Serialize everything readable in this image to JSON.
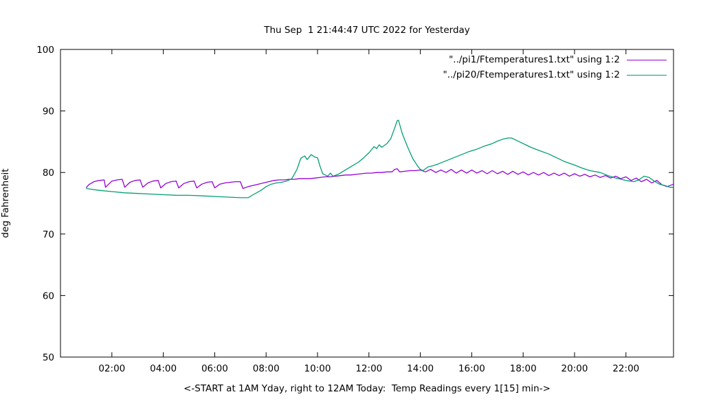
{
  "window": {
    "background": "#ffffff"
  },
  "chart_data": {
    "type": "line",
    "title": "Thu Sep  1 21:44:47 UTC 2022 for Yesterday",
    "ylabel": "deg Fahrenheit",
    "xlabel": "<-START at 1AM Yday, right to 12AM Today:  Temp Readings every 1[15] min->",
    "ylim": [
      50,
      100
    ],
    "xlim": [
      0,
      23.85
    ],
    "grid": false,
    "legend_position": "top-right-inside",
    "y_ticks": [
      50,
      60,
      70,
      80,
      90,
      100
    ],
    "x_ticks": [
      {
        "value": 2,
        "label": "02:00"
      },
      {
        "value": 4,
        "label": "04:00"
      },
      {
        "value": 6,
        "label": "06:00"
      },
      {
        "value": 8,
        "label": "08:00"
      },
      {
        "value": 10,
        "label": "10:00"
      },
      {
        "value": 12,
        "label": "12:00"
      },
      {
        "value": 14,
        "label": "14:00"
      },
      {
        "value": 16,
        "label": "16:00"
      },
      {
        "value": 18,
        "label": "18:00"
      },
      {
        "value": 20,
        "label": "20:00"
      },
      {
        "value": 22,
        "label": "22:00"
      }
    ],
    "series": [
      {
        "name": "\"../pi1/Ftemperatures1.txt\" using 1:2",
        "color": "#9400d3",
        "points": [
          [
            1.0,
            77.5
          ],
          [
            1.1,
            78.0
          ],
          [
            1.3,
            78.5
          ],
          [
            1.5,
            78.7
          ],
          [
            1.7,
            78.8
          ],
          [
            1.75,
            77.6
          ],
          [
            2.0,
            78.6
          ],
          [
            2.2,
            78.8
          ],
          [
            2.4,
            78.9
          ],
          [
            2.5,
            77.6
          ],
          [
            2.7,
            78.4
          ],
          [
            2.9,
            78.7
          ],
          [
            3.1,
            78.8
          ],
          [
            3.2,
            77.6
          ],
          [
            3.4,
            78.3
          ],
          [
            3.6,
            78.6
          ],
          [
            3.8,
            78.7
          ],
          [
            3.9,
            77.5
          ],
          [
            4.1,
            78.2
          ],
          [
            4.3,
            78.5
          ],
          [
            4.5,
            78.6
          ],
          [
            4.6,
            77.5
          ],
          [
            4.8,
            78.2
          ],
          [
            5.0,
            78.5
          ],
          [
            5.2,
            78.6
          ],
          [
            5.3,
            77.5
          ],
          [
            5.5,
            78.1
          ],
          [
            5.7,
            78.4
          ],
          [
            5.9,
            78.5
          ],
          [
            6.0,
            77.5
          ],
          [
            6.2,
            78.1
          ],
          [
            6.4,
            78.3
          ],
          [
            6.6,
            78.4
          ],
          [
            6.8,
            78.5
          ],
          [
            7.0,
            78.5
          ],
          [
            7.1,
            77.4
          ],
          [
            7.3,
            77.7
          ],
          [
            7.5,
            77.9
          ],
          [
            7.7,
            78.1
          ],
          [
            7.9,
            78.3
          ],
          [
            8.1,
            78.5
          ],
          [
            8.3,
            78.7
          ],
          [
            8.5,
            78.8
          ],
          [
            8.7,
            78.8
          ],
          [
            8.9,
            78.9
          ],
          [
            9.1,
            78.9
          ],
          [
            9.3,
            79.0
          ],
          [
            9.5,
            79.0
          ],
          [
            9.7,
            79.0
          ],
          [
            9.9,
            79.1
          ],
          [
            10.1,
            79.2
          ],
          [
            10.3,
            79.3
          ],
          [
            10.5,
            79.3
          ],
          [
            10.7,
            79.4
          ],
          [
            10.9,
            79.5
          ],
          [
            11.1,
            79.6
          ],
          [
            11.3,
            79.6
          ],
          [
            11.5,
            79.7
          ],
          [
            11.7,
            79.8
          ],
          [
            11.9,
            79.9
          ],
          [
            12.1,
            79.9
          ],
          [
            12.3,
            80.0
          ],
          [
            12.5,
            80.0
          ],
          [
            12.7,
            80.1
          ],
          [
            12.9,
            80.1
          ],
          [
            13.0,
            80.5
          ],
          [
            13.1,
            80.6
          ],
          [
            13.2,
            80.1
          ],
          [
            13.4,
            80.2
          ],
          [
            13.6,
            80.3
          ],
          [
            13.8,
            80.3
          ],
          [
            14.0,
            80.4
          ],
          [
            14.2,
            80.1
          ],
          [
            14.4,
            80.5
          ],
          [
            14.6,
            80.0
          ],
          [
            14.8,
            80.4
          ],
          [
            15.0,
            80.0
          ],
          [
            15.2,
            80.5
          ],
          [
            15.4,
            79.9
          ],
          [
            15.6,
            80.4
          ],
          [
            15.8,
            79.9
          ],
          [
            16.0,
            80.4
          ],
          [
            16.2,
            79.9
          ],
          [
            16.4,
            80.3
          ],
          [
            16.6,
            79.8
          ],
          [
            16.8,
            80.3
          ],
          [
            17.0,
            79.8
          ],
          [
            17.2,
            80.2
          ],
          [
            17.4,
            79.7
          ],
          [
            17.6,
            80.2
          ],
          [
            17.8,
            79.7
          ],
          [
            18.0,
            80.1
          ],
          [
            18.2,
            79.6
          ],
          [
            18.4,
            80.0
          ],
          [
            18.6,
            79.6
          ],
          [
            18.8,
            80.0
          ],
          [
            19.0,
            79.5
          ],
          [
            19.2,
            79.9
          ],
          [
            19.4,
            79.5
          ],
          [
            19.6,
            79.9
          ],
          [
            19.8,
            79.4
          ],
          [
            20.0,
            79.8
          ],
          [
            20.2,
            79.4
          ],
          [
            20.4,
            79.7
          ],
          [
            20.6,
            79.3
          ],
          [
            20.8,
            79.6
          ],
          [
            21.0,
            79.2
          ],
          [
            21.2,
            79.5
          ],
          [
            21.4,
            79.1
          ],
          [
            21.6,
            79.4
          ],
          [
            21.8,
            79.0
          ],
          [
            22.0,
            79.3
          ],
          [
            22.2,
            78.7
          ],
          [
            22.4,
            79.1
          ],
          [
            22.6,
            78.5
          ],
          [
            22.8,
            78.9
          ],
          [
            23.0,
            78.3
          ],
          [
            23.2,
            78.7
          ],
          [
            23.4,
            78.0
          ],
          [
            23.6,
            77.7
          ],
          [
            23.85,
            78.1
          ]
        ]
      },
      {
        "name": "\"../pi20/Ftemperatures1.txt\" using 1:2",
        "color": "#009e73",
        "points": [
          [
            1.0,
            77.4
          ],
          [
            1.5,
            77.1
          ],
          [
            2.0,
            76.9
          ],
          [
            2.5,
            76.7
          ],
          [
            3.0,
            76.6
          ],
          [
            3.5,
            76.5
          ],
          [
            4.0,
            76.4
          ],
          [
            4.5,
            76.3
          ],
          [
            5.0,
            76.3
          ],
          [
            5.5,
            76.2
          ],
          [
            6.0,
            76.1
          ],
          [
            6.5,
            76.0
          ],
          [
            7.0,
            75.9
          ],
          [
            7.3,
            75.9
          ],
          [
            7.5,
            76.4
          ],
          [
            7.8,
            77.1
          ],
          [
            8.0,
            77.7
          ],
          [
            8.2,
            78.1
          ],
          [
            8.4,
            78.3
          ],
          [
            8.6,
            78.4
          ],
          [
            8.8,
            78.6
          ],
          [
            9.0,
            79.0
          ],
          [
            9.2,
            80.5
          ],
          [
            9.35,
            82.3
          ],
          [
            9.5,
            82.7
          ],
          [
            9.6,
            82.1
          ],
          [
            9.75,
            82.9
          ],
          [
            9.9,
            82.5
          ],
          [
            10.0,
            82.4
          ],
          [
            10.1,
            81.0
          ],
          [
            10.2,
            79.8
          ],
          [
            10.4,
            79.4
          ],
          [
            10.5,
            79.9
          ],
          [
            10.6,
            79.4
          ],
          [
            10.8,
            79.7
          ],
          [
            11.0,
            80.2
          ],
          [
            11.2,
            80.7
          ],
          [
            11.4,
            81.2
          ],
          [
            11.6,
            81.7
          ],
          [
            11.8,
            82.4
          ],
          [
            12.0,
            83.2
          ],
          [
            12.2,
            84.2
          ],
          [
            12.3,
            83.9
          ],
          [
            12.4,
            84.5
          ],
          [
            12.5,
            84.1
          ],
          [
            12.7,
            84.7
          ],
          [
            12.85,
            85.5
          ],
          [
            13.0,
            87.2
          ],
          [
            13.1,
            88.4
          ],
          [
            13.15,
            88.5
          ],
          [
            13.3,
            86.3
          ],
          [
            13.5,
            84.2
          ],
          [
            13.7,
            82.3
          ],
          [
            13.9,
            81.0
          ],
          [
            14.0,
            80.5
          ],
          [
            14.1,
            80.3
          ],
          [
            14.3,
            80.9
          ],
          [
            14.5,
            81.1
          ],
          [
            14.7,
            81.4
          ],
          [
            15.0,
            81.9
          ],
          [
            15.3,
            82.4
          ],
          [
            15.6,
            82.9
          ],
          [
            15.9,
            83.4
          ],
          [
            16.2,
            83.8
          ],
          [
            16.5,
            84.3
          ],
          [
            16.8,
            84.7
          ],
          [
            17.0,
            85.1
          ],
          [
            17.2,
            85.4
          ],
          [
            17.4,
            85.6
          ],
          [
            17.55,
            85.6
          ],
          [
            17.7,
            85.3
          ],
          [
            18.0,
            84.7
          ],
          [
            18.3,
            84.1
          ],
          [
            18.6,
            83.6
          ],
          [
            19.0,
            83.0
          ],
          [
            19.3,
            82.4
          ],
          [
            19.6,
            81.8
          ],
          [
            20.0,
            81.2
          ],
          [
            20.3,
            80.7
          ],
          [
            20.6,
            80.3
          ],
          [
            21.0,
            80.0
          ],
          [
            21.3,
            79.5
          ],
          [
            21.6,
            79.1
          ],
          [
            22.0,
            78.7
          ],
          [
            22.3,
            78.5
          ],
          [
            22.5,
            78.8
          ],
          [
            22.7,
            79.4
          ],
          [
            22.9,
            79.2
          ],
          [
            23.1,
            78.6
          ],
          [
            23.3,
            78.1
          ],
          [
            23.5,
            77.9
          ],
          [
            23.7,
            77.6
          ],
          [
            23.85,
            77.6
          ]
        ]
      }
    ]
  },
  "legend": {
    "entries": [
      {
        "label": "\"../pi1/Ftemperatures1.txt\" using 1:2",
        "color": "#9400d3"
      },
      {
        "label": "\"../pi20/Ftemperatures1.txt\" using 1:2",
        "color": "#009e73"
      }
    ]
  }
}
